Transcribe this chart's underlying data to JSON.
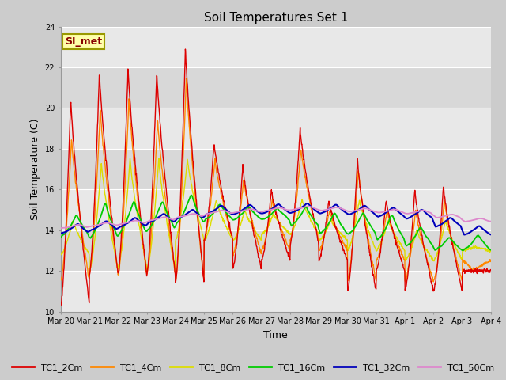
{
  "title": "Soil Temperatures Set 1",
  "xlabel": "Time",
  "ylabel": "Soil Temperature (C)",
  "ylim": [
    10,
    24
  ],
  "yticks": [
    10,
    12,
    14,
    16,
    18,
    20,
    22,
    24
  ],
  "annotation_text": "SI_met",
  "annotation_fg": "#880000",
  "annotation_bg": "#ffffaa",
  "annotation_border": "#999900",
  "series_colors": {
    "TC1_2Cm": "#dd0000",
    "TC1_4Cm": "#ff8800",
    "TC1_8Cm": "#dddd00",
    "TC1_16Cm": "#00cc00",
    "TC1_32Cm": "#0000bb",
    "TC1_50Cm": "#dd88cc"
  },
  "band_colors": [
    "#e8e8e8",
    "#d8d8d8"
  ],
  "gridline_color": "#ffffff",
  "fig_bg": "#cccccc",
  "plot_bg": "#e0e0e0",
  "tick_label_fontsize": 7,
  "axis_label_fontsize": 9,
  "title_fontsize": 11
}
